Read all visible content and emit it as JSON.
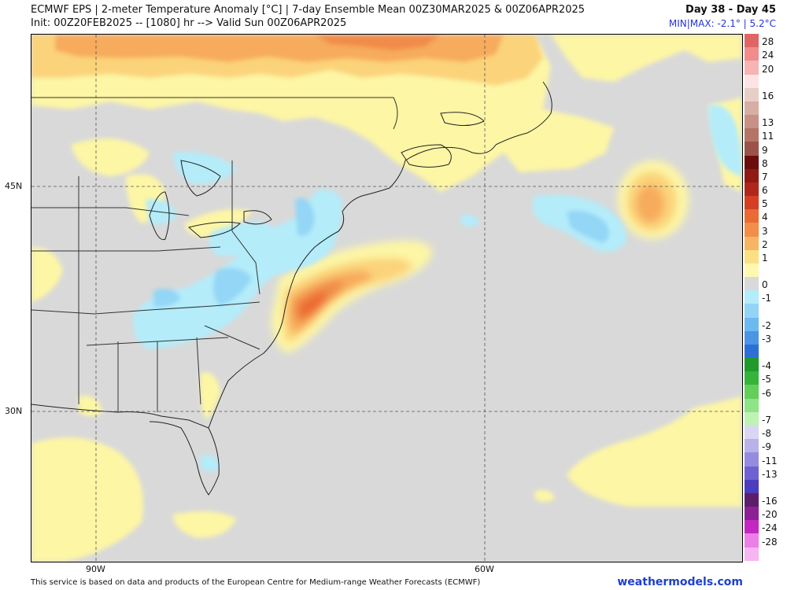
{
  "header": {
    "title": "ECMWF EPS | 2-meter Temperature Anomaly [°C] | 7-day Ensemble Mean 00Z30MAR2025 & 00Z06APR2025",
    "init": "Init: 00Z20FEB2025 -- [1080] hr --> Valid Sun 00Z06APR2025",
    "days": "Day 38 - Day 45",
    "minmax": "MIN|MAX: -2.1° | 5.2°C"
  },
  "map": {
    "lat_labels": [
      "45N",
      "30N"
    ],
    "lon_labels": [
      "90W",
      "60W"
    ],
    "colors": {
      "neutral": "#d9d9d9",
      "land_edge": "#222222",
      "warm1": "#fdf6a5",
      "warm2": "#fbd37a",
      "warm3": "#f7ab5c",
      "warm4": "#f08b48",
      "warm5": "#ec6b33",
      "cool1": "#b4ecfa",
      "cool2": "#93d6f6",
      "cool3": "#79c2f0"
    }
  },
  "legend": {
    "items": [
      {
        "label": "28",
        "color": "#e06666"
      },
      {
        "label": "24",
        "color": "#f08c8c"
      },
      {
        "label": "20",
        "color": "#f6b4b4"
      },
      {
        "label": "",
        "color": "#fce4e4"
      },
      {
        "label": "16",
        "color": "#e7cfc8"
      },
      {
        "label": "",
        "color": "#d7aea4"
      },
      {
        "label": "13",
        "color": "#c89186"
      },
      {
        "label": "11",
        "color": "#b57468"
      },
      {
        "label": "9",
        "color": "#9c5248"
      },
      {
        "label": "8",
        "color": "#6b0d0d"
      },
      {
        "label": "7",
        "color": "#8f1b12"
      },
      {
        "label": "6",
        "color": "#b0261a"
      },
      {
        "label": "5",
        "color": "#d53e22"
      },
      {
        "label": "4",
        "color": "#ea6a33"
      },
      {
        "label": "3",
        "color": "#f28e48"
      },
      {
        "label": "2",
        "color": "#f7b564"
      },
      {
        "label": "1",
        "color": "#fbe083"
      },
      {
        "label": "",
        "color": "#fff9b0"
      },
      {
        "label": "0",
        "color": "#d9d9d9"
      },
      {
        "label": "-1",
        "color": "#b4ecfa"
      },
      {
        "label": "",
        "color": "#92d5f7"
      },
      {
        "label": "-2",
        "color": "#6db9f2"
      },
      {
        "label": "-3",
        "color": "#4b95e6"
      },
      {
        "label": "",
        "color": "#2d6fd8"
      },
      {
        "label": "-4",
        "color": "#1f9a2b"
      },
      {
        "label": "-5",
        "color": "#35b43c"
      },
      {
        "label": "-6",
        "color": "#62cf5a"
      },
      {
        "label": "",
        "color": "#8fe485"
      },
      {
        "label": "-7",
        "color": "#bff3b5"
      },
      {
        "label": "-8",
        "color": "#dad6f2"
      },
      {
        "label": "-9",
        "color": "#b8b2ea"
      },
      {
        "label": "-11",
        "color": "#958ce0"
      },
      {
        "label": "-13",
        "color": "#6e62d2"
      },
      {
        "label": "",
        "color": "#4b3cc0"
      },
      {
        "label": "-16",
        "color": "#5c1e6a"
      },
      {
        "label": "-20",
        "color": "#8d2093"
      },
      {
        "label": "-24",
        "color": "#c428c2"
      },
      {
        "label": "-28",
        "color": "#ec7fe7"
      },
      {
        "label": "",
        "color": "#f6b5f3"
      }
    ]
  },
  "footer": {
    "disclaimer": "This service is based on data and products of the European Centre for Medium-range Weather Forecasts (ECMWF)",
    "brand": "weathermodels.com"
  }
}
